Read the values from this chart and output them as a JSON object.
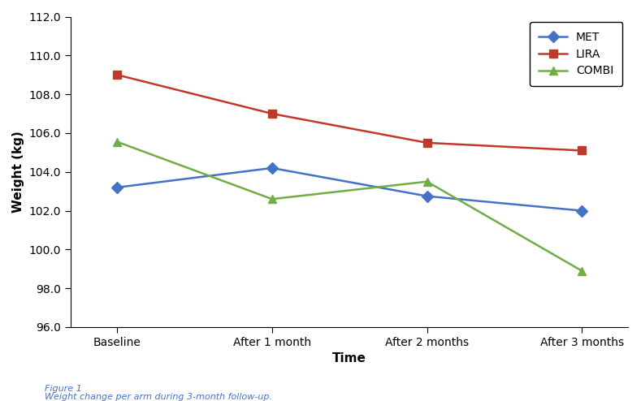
{
  "x_labels": [
    "Baseline",
    "After 1 month",
    "After 2 months",
    "After 3 months"
  ],
  "series": [
    {
      "name": "MET",
      "values": [
        103.2,
        104.2,
        102.75,
        102.0
      ],
      "color": "#4472c4",
      "marker": "D",
      "linewidth": 1.8
    },
    {
      "name": "LIRA",
      "values": [
        109.0,
        107.0,
        105.5,
        105.1
      ],
      "color": "#c0392b",
      "marker": "s",
      "linewidth": 1.8
    },
    {
      "name": "COMBI",
      "values": [
        105.55,
        102.6,
        103.5,
        98.9
      ],
      "color": "#70ad47",
      "marker": "^",
      "linewidth": 1.8
    }
  ],
  "ylabel": "Weight (kg)",
  "xlabel": "Time",
  "ylim": [
    96.0,
    112.0
  ],
  "yticks": [
    96.0,
    98.0,
    100.0,
    102.0,
    104.0,
    106.0,
    108.0,
    110.0,
    112.0
  ],
  "title": "",
  "caption_line1": "Figure 1",
  "caption_line2": "Weight change per arm during 3-month follow-up.",
  "background_color": "#ffffff",
  "legend_loc": "upper right",
  "figsize": [
    7.89,
    4.94
  ],
  "dpi": 100
}
